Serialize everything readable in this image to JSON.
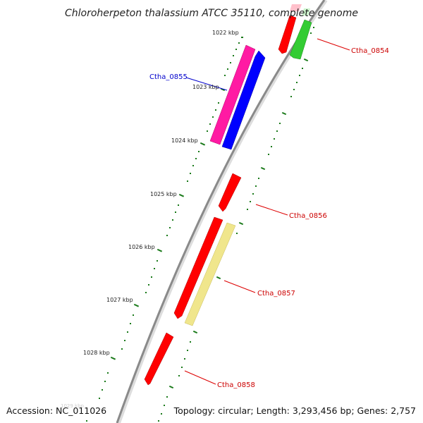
{
  "title": "Chloroherpeton thalassium ATCC 35110, complete genome",
  "footer": {
    "accession": "Accession: NC_011026",
    "summary": "Topology: circular; Length: 3,293,456 bp; Genes: 2,757"
  },
  "ticks": [
    {
      "label": "1022 kbp"
    },
    {
      "label": "1023 kbp"
    },
    {
      "label": "1024 kbp"
    },
    {
      "label": "1025 kbp"
    },
    {
      "label": "1026 kbp"
    },
    {
      "label": "1027 kbp"
    },
    {
      "label": "1028 kbp"
    },
    {
      "label": "1029 kbp"
    }
  ],
  "genes": [
    {
      "name": "Ctha_0854",
      "label_color": "#cc0000"
    },
    {
      "name": "Ctha_0855",
      "label_color": "#0000cc"
    },
    {
      "name": "Ctha_0856",
      "label_color": "#cc0000"
    },
    {
      "name": "Ctha_0857",
      "label_color": "#cc0000"
    },
    {
      "name": "Ctha_0858",
      "label_color": "#cc0000"
    }
  ],
  "colors": {
    "backbone": "#8a8a8a",
    "tick_green": "#1a7a1a",
    "red_feature": "#ff0000",
    "green_feature": "#33cc33",
    "magenta_feature": "#ff1aa3",
    "blue_feature": "#0000ff",
    "yellow_feature": "#f0e68c"
  }
}
